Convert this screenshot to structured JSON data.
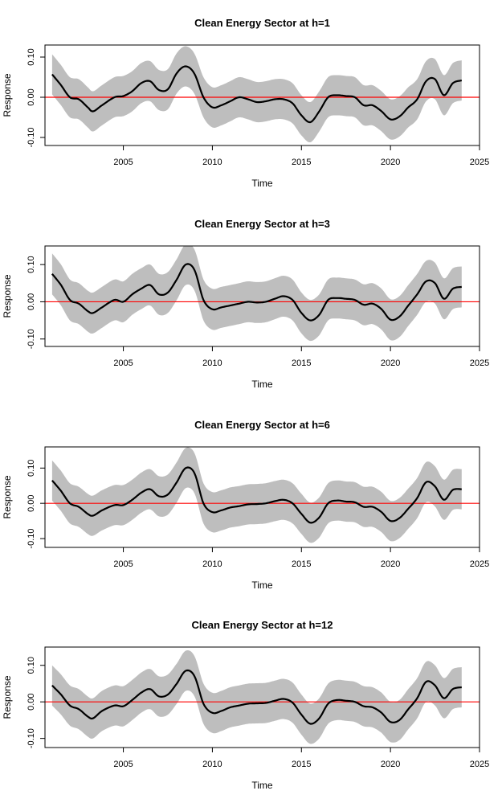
{
  "chart_data": [
    {
      "type": "line",
      "title": "Clean Energy Sector  at h=1",
      "xlabel": "Time",
      "ylabel": "Response",
      "xlim": [
        2000.6,
        2025
      ],
      "ylim": [
        -0.12,
        0.13
      ],
      "x_ticks": [
        2005,
        2010,
        2015,
        2020,
        2025
      ],
      "x_tick_labels": [
        "2005",
        "2010",
        "2015",
        "2020",
        "2025"
      ],
      "y_ticks": [
        -0.1,
        0.0,
        0.1
      ],
      "y_tick_labels": [
        "-0.10",
        "0.00",
        "0.10"
      ],
      "reference_line": {
        "y": 0,
        "color": "#ff0000"
      },
      "band_color": "#bebebe",
      "line_color": "#000000",
      "band_halfwidth": 0.05,
      "series": [
        {
          "x": [
            2001.0,
            2001.5,
            2002.0,
            2002.5,
            2003.0,
            2003.3,
            2003.8,
            2004.5,
            2005.0,
            2005.5,
            2006.0,
            2006.5,
            2007.0,
            2007.5,
            2008.0,
            2008.5,
            2009.0,
            2009.5,
            2010.0,
            2010.5,
            2011.0,
            2011.5,
            2012.0,
            2012.5,
            2013.0,
            2013.5,
            2014.0,
            2014.5,
            2015.0,
            2015.5,
            2016.0,
            2016.5,
            2017.0,
            2017.5,
            2018.0,
            2018.5,
            2019.0,
            2019.5,
            2020.0,
            2020.5,
            2021.0,
            2021.5,
            2022.0,
            2022.5,
            2023.0,
            2023.5,
            2024.0
          ],
          "y": [
            0.057,
            0.03,
            0.0,
            -0.005,
            -0.025,
            -0.035,
            -0.02,
            0.0,
            0.003,
            0.015,
            0.035,
            0.04,
            0.018,
            0.02,
            0.06,
            0.077,
            0.058,
            0.0,
            -0.025,
            -0.02,
            -0.01,
            0.0,
            -0.005,
            -0.012,
            -0.01,
            -0.005,
            -0.005,
            -0.015,
            -0.045,
            -0.062,
            -0.035,
            0.0,
            0.005,
            0.003,
            0.0,
            -0.02,
            -0.02,
            -0.035,
            -0.055,
            -0.048,
            -0.025,
            -0.005,
            0.04,
            0.045,
            0.005,
            0.035,
            0.042
          ]
        }
      ]
    },
    {
      "type": "line",
      "title": "Clean Energy Sector  at h=3",
      "xlabel": "Time",
      "ylabel": "Response",
      "xlim": [
        2000.6,
        2025
      ],
      "ylim": [
        -0.12,
        0.15
      ],
      "x_ticks": [
        2005,
        2010,
        2015,
        2020,
        2025
      ],
      "x_tick_labels": [
        "2005",
        "2010",
        "2015",
        "2020",
        "2025"
      ],
      "y_ticks": [
        -0.1,
        0.0,
        0.1
      ],
      "y_tick_labels": [
        "-0.10",
        "0.00",
        "0.10"
      ],
      "reference_line": {
        "y": 0,
        "color": "#ff0000"
      },
      "band_color": "#bebebe",
      "line_color": "#000000",
      "band_halfwidth": 0.055,
      "series": [
        {
          "x": [
            2001.0,
            2001.5,
            2002.0,
            2002.5,
            2003.0,
            2003.3,
            2003.8,
            2004.5,
            2005.0,
            2005.5,
            2006.0,
            2006.5,
            2007.0,
            2007.5,
            2008.0,
            2008.5,
            2009.0,
            2009.5,
            2010.0,
            2010.5,
            2011.0,
            2011.5,
            2012.0,
            2012.5,
            2013.0,
            2013.5,
            2014.0,
            2014.5,
            2015.0,
            2015.5,
            2016.0,
            2016.5,
            2017.0,
            2017.5,
            2018.0,
            2018.5,
            2019.0,
            2019.5,
            2020.0,
            2020.5,
            2021.0,
            2021.5,
            2022.0,
            2022.5,
            2023.0,
            2023.5,
            2024.0
          ],
          "y": [
            0.075,
            0.045,
            0.005,
            -0.005,
            -0.025,
            -0.03,
            -0.015,
            0.005,
            0.0,
            0.02,
            0.035,
            0.045,
            0.02,
            0.025,
            0.06,
            0.1,
            0.085,
            0.005,
            -0.02,
            -0.015,
            -0.01,
            -0.005,
            0.0,
            -0.002,
            0.0,
            0.008,
            0.015,
            0.005,
            -0.03,
            -0.05,
            -0.035,
            0.005,
            0.01,
            0.008,
            0.005,
            -0.008,
            -0.005,
            -0.02,
            -0.048,
            -0.04,
            -0.01,
            0.02,
            0.055,
            0.05,
            0.008,
            0.035,
            0.04
          ]
        }
      ]
    },
    {
      "type": "line",
      "title": "Clean Energy Sector  at h=6",
      "xlabel": "Time",
      "ylabel": "Response",
      "xlim": [
        2000.6,
        2025
      ],
      "ylim": [
        -0.125,
        0.16
      ],
      "x_ticks": [
        2005,
        2010,
        2015,
        2020,
        2025
      ],
      "x_tick_labels": [
        "2005",
        "2010",
        "2015",
        "2020",
        "2025"
      ],
      "y_ticks": [
        -0.1,
        0.0,
        0.1
      ],
      "y_tick_labels": [
        "-0.10",
        "0.00",
        "0.10"
      ],
      "reference_line": {
        "y": 0,
        "color": "#ff0000"
      },
      "band_color": "#bebebe",
      "line_color": "#000000",
      "band_halfwidth": 0.057,
      "series": [
        {
          "x": [
            2001.0,
            2001.5,
            2002.0,
            2002.5,
            2003.0,
            2003.3,
            2003.8,
            2004.5,
            2005.0,
            2005.5,
            2006.0,
            2006.5,
            2007.0,
            2007.5,
            2008.0,
            2008.5,
            2009.0,
            2009.5,
            2010.0,
            2010.5,
            2011.0,
            2011.5,
            2012.0,
            2012.5,
            2013.0,
            2013.5,
            2014.0,
            2014.5,
            2015.0,
            2015.5,
            2016.0,
            2016.5,
            2017.0,
            2017.5,
            2018.0,
            2018.5,
            2019.0,
            2019.5,
            2020.0,
            2020.5,
            2021.0,
            2021.5,
            2022.0,
            2022.5,
            2023.0,
            2023.5,
            2024.0
          ],
          "y": [
            0.065,
            0.035,
            0.0,
            -0.01,
            -0.03,
            -0.035,
            -0.02,
            -0.005,
            -0.005,
            0.01,
            0.03,
            0.04,
            0.02,
            0.025,
            0.06,
            0.1,
            0.085,
            0.0,
            -0.025,
            -0.02,
            -0.012,
            -0.008,
            -0.003,
            -0.002,
            0.0,
            0.006,
            0.01,
            0.0,
            -0.03,
            -0.055,
            -0.04,
            0.0,
            0.008,
            0.005,
            0.003,
            -0.01,
            -0.01,
            -0.025,
            -0.05,
            -0.042,
            -0.015,
            0.015,
            0.06,
            0.048,
            0.01,
            0.038,
            0.04
          ]
        }
      ]
    },
    {
      "type": "line",
      "title": "Clean Energy Sector  at h=12",
      "xlabel": "Time",
      "ylabel": "Response",
      "xlim": [
        2000.6,
        2025
      ],
      "ylim": [
        -0.125,
        0.15
      ],
      "x_ticks": [
        2005,
        2010,
        2015,
        2020,
        2025
      ],
      "x_tick_labels": [
        "2005",
        "2010",
        "2015",
        "2020",
        "2025"
      ],
      "y_ticks": [
        -0.1,
        0.0,
        0.1
      ],
      "y_tick_labels": [
        "-0.10",
        "0.00",
        "0.10"
      ],
      "reference_line": {
        "y": 0,
        "color": "#ff0000"
      },
      "band_color": "#bebebe",
      "line_color": "#000000",
      "band_halfwidth": 0.055,
      "series": [
        {
          "x": [
            2001.0,
            2001.5,
            2002.0,
            2002.5,
            2003.0,
            2003.3,
            2003.8,
            2004.5,
            2005.0,
            2005.5,
            2006.0,
            2006.5,
            2007.0,
            2007.5,
            2008.0,
            2008.5,
            2009.0,
            2009.5,
            2010.0,
            2010.5,
            2011.0,
            2011.5,
            2012.0,
            2012.5,
            2013.0,
            2013.5,
            2014.0,
            2014.5,
            2015.0,
            2015.5,
            2016.0,
            2016.5,
            2017.0,
            2017.5,
            2018.0,
            2018.5,
            2019.0,
            2019.5,
            2020.0,
            2020.5,
            2021.0,
            2021.5,
            2022.0,
            2022.5,
            2023.0,
            2023.5,
            2024.0
          ],
          "y": [
            0.045,
            0.02,
            -0.01,
            -0.02,
            -0.04,
            -0.045,
            -0.025,
            -0.01,
            -0.012,
            0.005,
            0.025,
            0.035,
            0.015,
            0.02,
            0.05,
            0.085,
            0.07,
            -0.005,
            -0.03,
            -0.025,
            -0.015,
            -0.01,
            -0.005,
            -0.004,
            -0.003,
            0.003,
            0.008,
            -0.002,
            -0.035,
            -0.06,
            -0.045,
            -0.005,
            0.005,
            0.003,
            0.0,
            -0.012,
            -0.015,
            -0.03,
            -0.055,
            -0.05,
            -0.02,
            0.01,
            0.055,
            0.045,
            0.01,
            0.035,
            0.04
          ]
        }
      ]
    }
  ]
}
